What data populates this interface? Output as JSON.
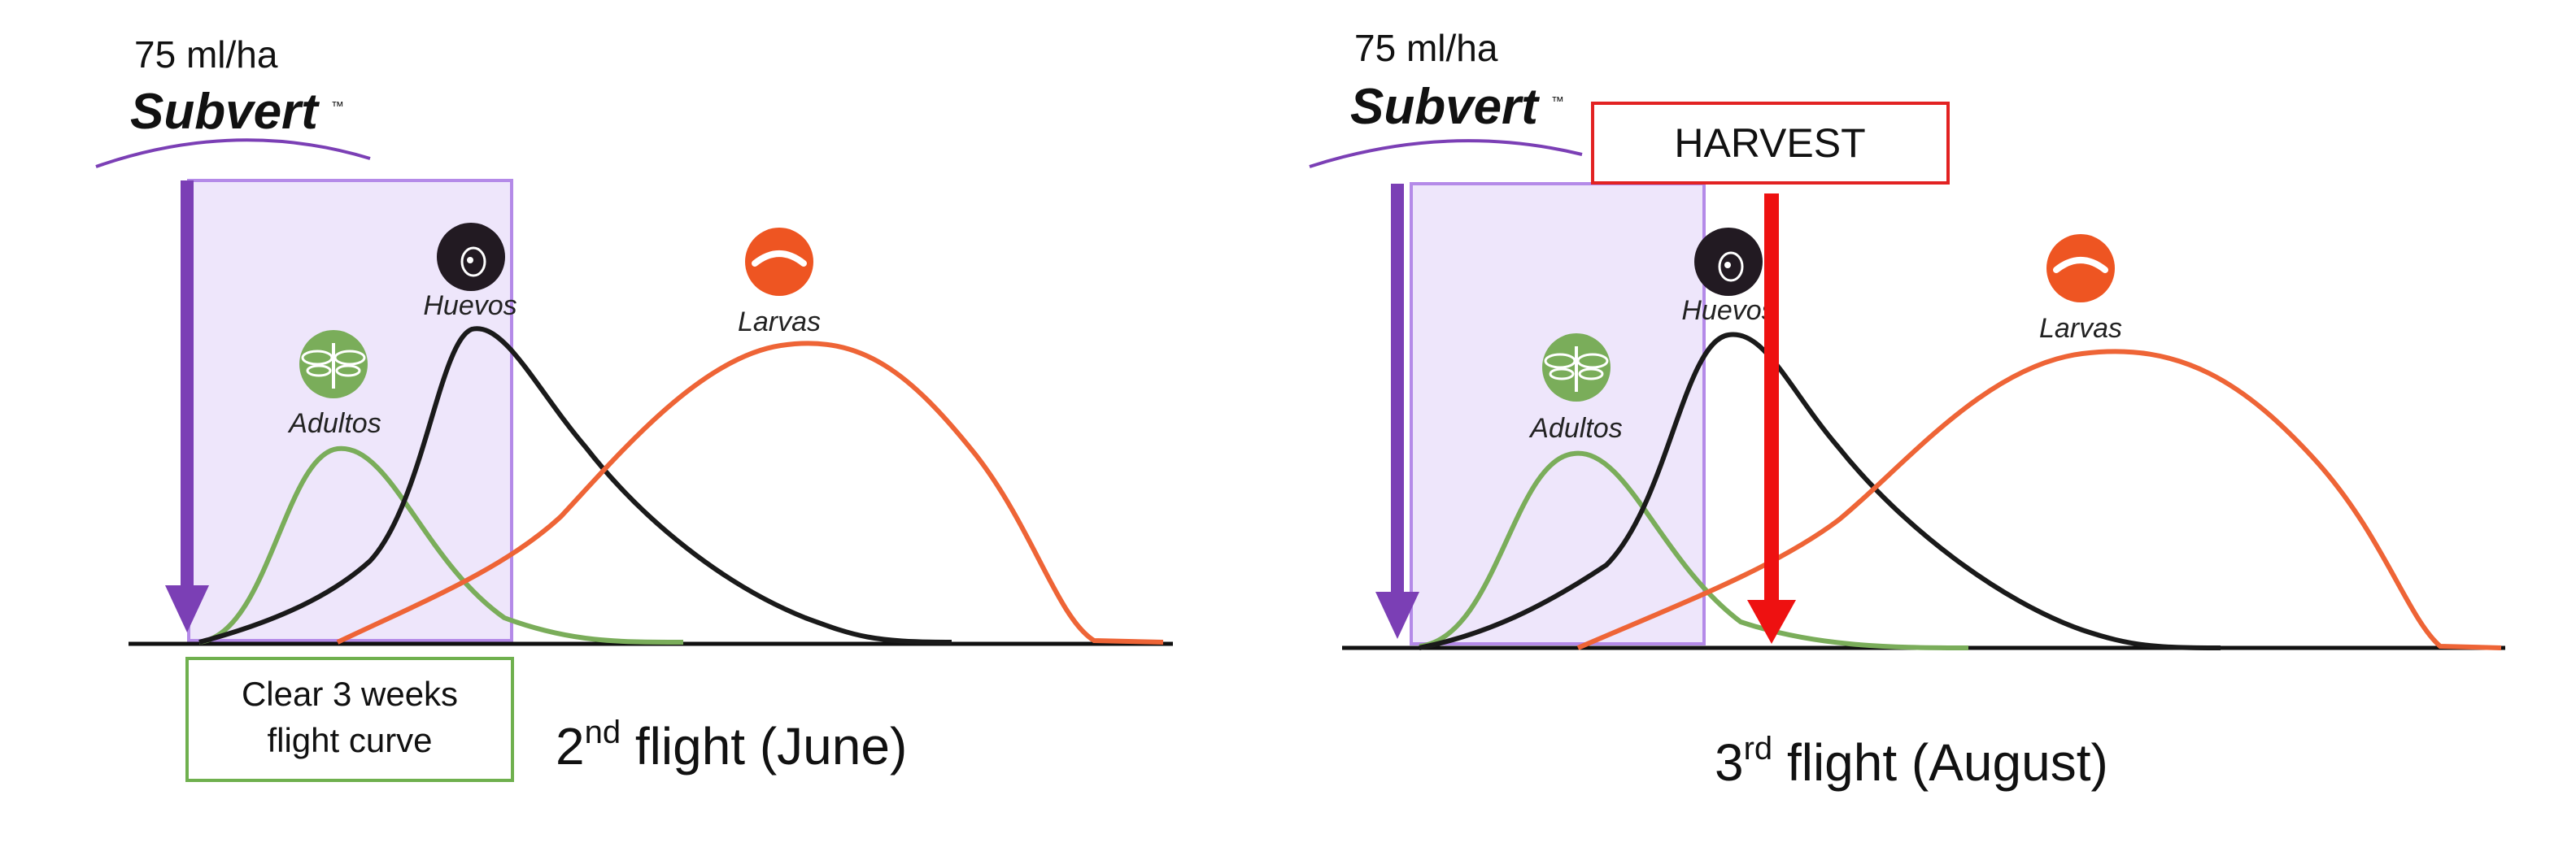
{
  "panels": [
    {
      "dose": "75 ml/ha",
      "brand": "Subvert",
      "trademark": "™",
      "labels": {
        "adults": "Adultos",
        "eggs": "Huevos",
        "larvae": "Larvas"
      },
      "clear_box_lines": [
        "Clear 3 weeks",
        "flight curve"
      ],
      "flight_number": "2",
      "flight_suffix": "nd",
      "flight_rest": " flight (June)"
    },
    {
      "dose": "75 ml/ha",
      "brand": "Subvert",
      "trademark": "™",
      "labels": {
        "adults": "Adultos",
        "eggs": "Huevos",
        "larvae": "Larvas"
      },
      "harvest_label": "HARVEST",
      "flight_number": "3",
      "flight_suffix": "rd",
      "flight_rest": " flight (August)"
    }
  ],
  "colors": {
    "adults": "#7aad5a",
    "eggs": "#1a1a1a",
    "larvae": "#ee6436",
    "purple": "#7b3fb5",
    "shade_fill": "#eee6fb",
    "shade_stroke": "#b48ae8",
    "clear_box": "#6fb04e",
    "harvest": "#ee1111"
  },
  "icons": [
    "dragonfly-icon",
    "egg-icon",
    "larva-icon"
  ]
}
